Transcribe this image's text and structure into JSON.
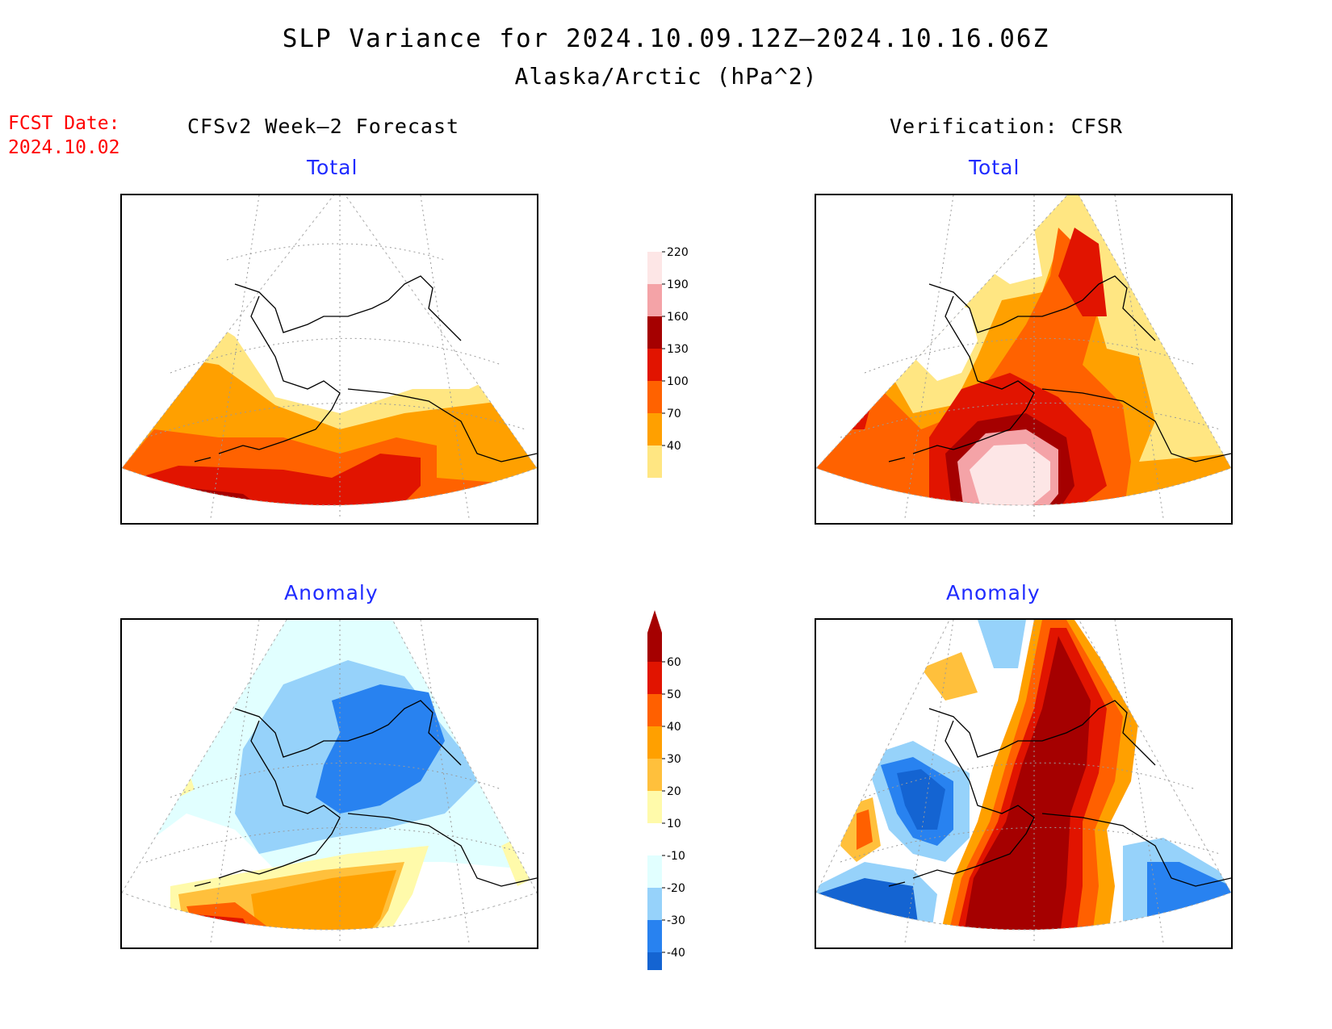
{
  "title": "SLP Variance for 2024.10.09.12Z–2024.10.16.06Z",
  "subtitle": "Alaska/Arctic (hPa^2)",
  "fcst_label": "FCST Date:",
  "fcst_date": "2024.10.02",
  "left_column_title": "CFSv2 Week–2 Forecast",
  "right_column_title": "Verification: CFSR",
  "panels": {
    "forecast_total": "Total",
    "verification_total": "Total",
    "forecast_anomaly": "Anomaly",
    "verification_anomaly": "Anomaly"
  },
  "total_colorbar": {
    "levels": [
      "40",
      "70",
      "100",
      "130",
      "160",
      "190",
      "220"
    ],
    "colors": [
      "#ffe682",
      "#ffa000",
      "#ff6200",
      "#e11400",
      "#a50000",
      "#f4a3a7",
      "#fde6e6"
    ]
  },
  "anomaly_colorbar": {
    "levels": [
      "-40",
      "-30",
      "-20",
      "-10",
      "10",
      "20",
      "30",
      "40",
      "50",
      "60"
    ],
    "colors": [
      "#1464d2",
      "#2882f0",
      "#96d2fa",
      "#e1ffff",
      "#ffffff",
      "#fffaaa",
      "#ffc03c",
      "#ffa000",
      "#ff6000",
      "#e11400",
      "#a50000"
    ]
  }
}
